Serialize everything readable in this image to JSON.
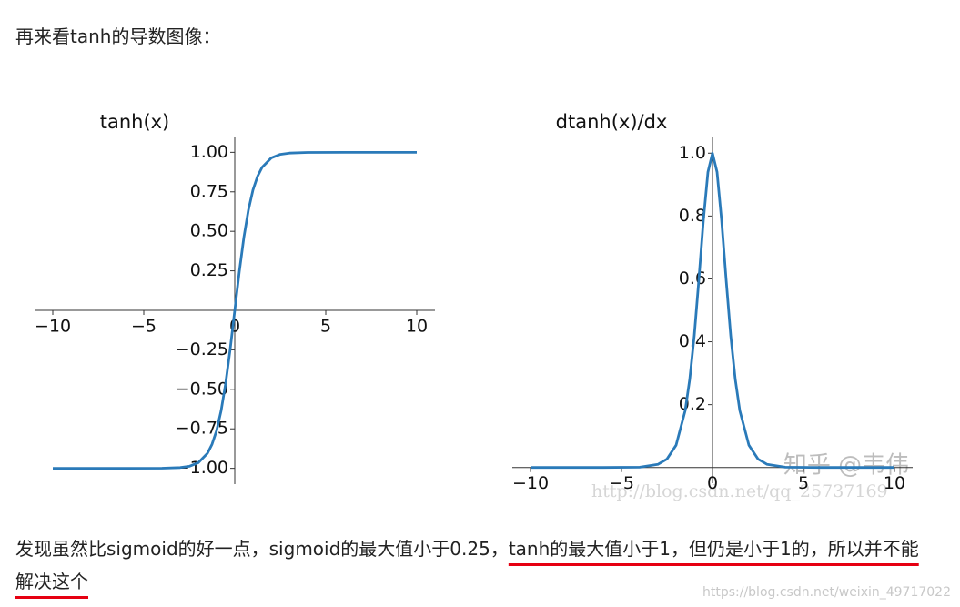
{
  "heading": "再来看tanh的导数图像：",
  "chart_data": [
    {
      "type": "line",
      "title": "tanh(x)",
      "color": "#2a7ab9",
      "x": [
        -10,
        -6,
        -4,
        -3,
        -2.5,
        -2,
        -1.5,
        -1.25,
        -1,
        -0.75,
        -0.5,
        -0.25,
        0,
        0.25,
        0.5,
        0.75,
        1,
        1.25,
        1.5,
        2,
        2.5,
        3,
        4,
        6,
        10
      ],
      "values": [
        -1,
        -1,
        -0.999,
        -0.995,
        -0.987,
        -0.964,
        -0.905,
        -0.848,
        -0.762,
        -0.635,
        -0.462,
        -0.245,
        0,
        0.245,
        0.462,
        0.635,
        0.762,
        0.848,
        0.905,
        0.964,
        0.987,
        0.995,
        0.999,
        1,
        1
      ],
      "xlim": [
        -11,
        11
      ],
      "ylim": [
        -1.1,
        1.1
      ],
      "xticks": [
        {
          "value": -10,
          "label": "−10"
        },
        {
          "value": -5,
          "label": "−5"
        },
        0,
        5,
        10
      ],
      "yticks": [
        {
          "value": 1,
          "label": "1.00"
        },
        0.75,
        {
          "value": 0.5,
          "label": "0.50"
        },
        0.25,
        {
          "value": -0.25,
          "label": "−0.25"
        },
        {
          "value": -0.5,
          "label": "−0.50"
        },
        {
          "value": -0.75,
          "label": "−0.75"
        },
        {
          "value": -1,
          "label": "−1.00"
        }
      ]
    },
    {
      "type": "line",
      "title": "dtanh(x)/dx",
      "color": "#2a7ab9",
      "x": [
        -10,
        -6,
        -4,
        -3,
        -2.5,
        -2,
        -1.5,
        -1.25,
        -1,
        -0.75,
        -0.5,
        -0.25,
        0,
        0.25,
        0.5,
        0.75,
        1,
        1.25,
        1.5,
        2,
        2.5,
        3,
        4,
        6,
        10
      ],
      "values": [
        0,
        0,
        0.001,
        0.01,
        0.027,
        0.071,
        0.181,
        0.281,
        0.42,
        0.597,
        0.786,
        0.94,
        1,
        0.94,
        0.786,
        0.597,
        0.42,
        0.281,
        0.181,
        0.071,
        0.027,
        0.01,
        0.001,
        0,
        0
      ],
      "xlim": [
        -11,
        11
      ],
      "ylim": [
        -0.05,
        1.05
      ],
      "xticks": [
        {
          "value": -10,
          "label": "−10"
        },
        {
          "value": -5,
          "label": "−5"
        },
        0,
        5,
        10
      ],
      "yticks": [
        0.2,
        0.4,
        0.6,
        0.8,
        {
          "value": 1,
          "label": "1.0"
        }
      ]
    }
  ],
  "watermarks": [
    "知乎 @韦伟",
    "http://blog.csdn.net/qq_25737169",
    "https://blog.csdn.net/weixin_49717022"
  ],
  "paragraph": [
    "发现虽然比sigmoid的好一点，sigmoid的最大值小于0.25，",
    "tanh的最大值小于1，但仍是小于1的，所以并不能解决这个"
  ]
}
